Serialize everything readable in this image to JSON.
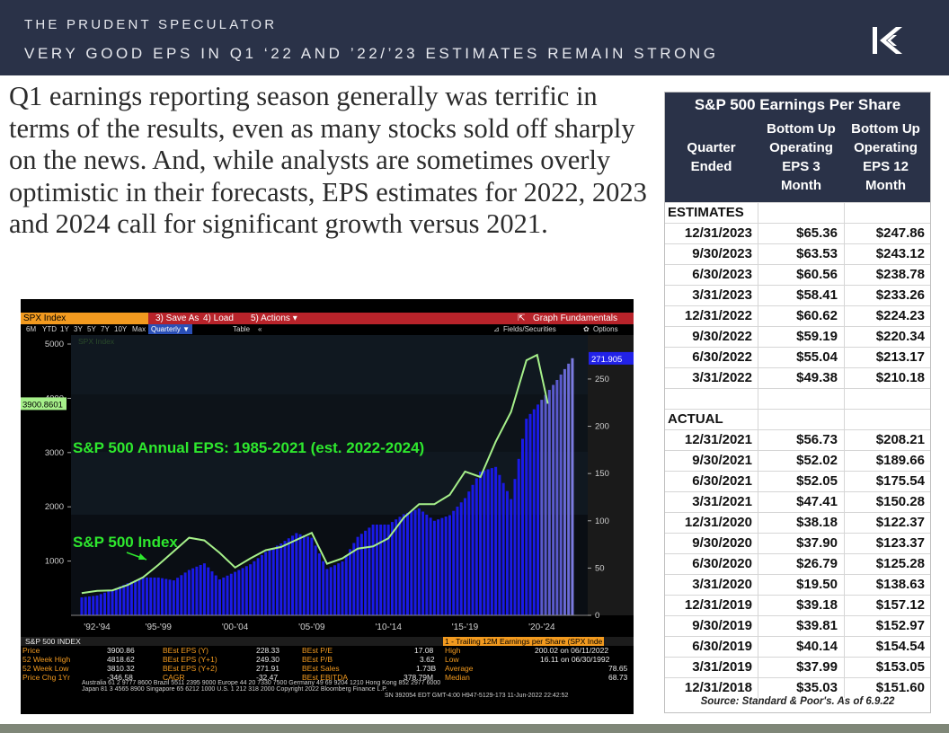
{
  "header": {
    "brand": "THE PRUDENT SPECULATOR",
    "headline": "VERY GOOD EPS IN Q1 ‘22 AND ’22/’23 ESTIMATES REMAIN STRONG",
    "logo_icon": "k-logo-icon"
  },
  "lead_text": "Q1 earnings reporting season generally was terrific in terms of the results, even as many stocks sold off sharply on the news. And, while analysts are sometimes overly optimistic in their forecasts, EPS estimates for 2022, 2023 and 2024 call for significant growth versus 2021.",
  "terminal": {
    "ticker": "SPX Index",
    "menu": [
      "3) Save As",
      "4) Load",
      "5) Actions ▾"
    ],
    "graph_fundamentals": "Graph Fundamentals",
    "periods": [
      "6M",
      "YTD",
      "1Y",
      "3Y",
      "5Y",
      "7Y",
      "10Y",
      "Max"
    ],
    "period_selected": "Quarterly ▼",
    "table_btn": "Table",
    "collapse": "«",
    "fields_btn": "Fields/Securities",
    "options_btn": "Options",
    "footer_title": "S&P 500 INDEX",
    "stats_left": [
      {
        "label": "Price",
        "value": "3900.86"
      },
      {
        "label": "52 Week High",
        "value": "4818.62"
      },
      {
        "label": "52 Week Low",
        "value": "3810.32"
      },
      {
        "label": "Price Chg 1Yr",
        "value": "-346.58"
      }
    ],
    "stats_mid": [
      {
        "label": "BEst EPS (Y)",
        "value": "228.33"
      },
      {
        "label": "BEst EPS (Y+1)",
        "value": "249.30"
      },
      {
        "label": "BEst EPS (Y+2)",
        "value": "271.91"
      },
      {
        "label": "CAGR",
        "value": "-32.47"
      }
    ],
    "stats_mid2": [
      {
        "label": "BEst P/E",
        "value": "17.08"
      },
      {
        "label": "BEst P/B",
        "value": "3.62"
      },
      {
        "label": "BEst Sales",
        "value": "1.73B"
      },
      {
        "label": "BEst EBITDA",
        "value": "378.79M"
      }
    ],
    "stats_right_title": "1 - Trailing 12M Earnings per Share (SPX Inde",
    "stats_right": [
      {
        "label": "High",
        "value": "200.02 on 06/11/2022"
      },
      {
        "label": "Low",
        "value": "16.11 on 06/30/1992"
      },
      {
        "label": "Average",
        "value": "78.65"
      },
      {
        "label": "Median",
        "value": "68.73"
      }
    ],
    "copyright_1": "Australia 61 2 9777 8600 Brazil 5511 2395 9000 Europe 44 20 7330 7500 Germany 49 69 9204 1210 Hong Kong 852 2977 6000",
    "copyright_2": "Japan 81 3 4565 8900        Singapore 65 6212 1000        U.S. 1 212 318 2000        Copyright 2022 Bloomberg Finance L.P.",
    "copyright_3": "SN 392054 EDT  GMT-4:00 H947-5129-173 11-Jun-2022 22:42:52"
  },
  "chart_data": {
    "type": "bar",
    "legend_ghost": "SPX Index",
    "annotation_eps": "S&P 500 Annual EPS: 1985-2021 (est. 2022-2024)",
    "annotation_index": "S&P 500 Index",
    "x_tick_labels": [
      "'92-'94",
      "'95-'99",
      "'00-'04",
      "'05-'09",
      "'10-'14",
      "'15-'19",
      "'20-'24"
    ],
    "left_axis": {
      "ticks": [
        1000,
        2000,
        3000,
        4000,
        5000
      ],
      "ylim": [
        0,
        5000
      ]
    },
    "right_axis": {
      "ticks": [
        0,
        50,
        100,
        150,
        200,
        250
      ],
      "ylim": [
        0,
        287
      ]
    },
    "last_price_label": "3900.8601",
    "last_eps_label": "271.905",
    "series": [
      {
        "name": "SPX Index",
        "kind": "line",
        "color": "#a6f08a",
        "points": [
          [
            1992,
            410
          ],
          [
            1993,
            450
          ],
          [
            1994,
            460
          ],
          [
            1995,
            560
          ],
          [
            1996,
            700
          ],
          [
            1997,
            930
          ],
          [
            1998,
            1180
          ],
          [
            1999,
            1430
          ],
          [
            2000,
            1380
          ],
          [
            2001,
            1150
          ],
          [
            2002,
            880
          ],
          [
            2003,
            1050
          ],
          [
            2004,
            1200
          ],
          [
            2005,
            1260
          ],
          [
            2006,
            1390
          ],
          [
            2007,
            1520
          ],
          [
            2008,
            950
          ],
          [
            2009,
            1050
          ],
          [
            2010,
            1230
          ],
          [
            2011,
            1270
          ],
          [
            2012,
            1420
          ],
          [
            2013,
            1800
          ],
          [
            2014,
            2050
          ],
          [
            2015,
            2050
          ],
          [
            2016,
            2220
          ],
          [
            2017,
            2650
          ],
          [
            2018,
            2550
          ],
          [
            2019,
            3200
          ],
          [
            2020,
            3750
          ],
          [
            2021,
            4700
          ],
          [
            2021.7,
            4800
          ],
          [
            2022.4,
            3900
          ]
        ]
      },
      {
        "name": "Trailing 12M Earnings per Share",
        "kind": "bar",
        "color": "#1a1ae6",
        "points": [
          [
            1992,
            19
          ],
          [
            1993,
            21
          ],
          [
            1994,
            27
          ],
          [
            1995,
            34
          ],
          [
            1996,
            40
          ],
          [
            1997,
            40
          ],
          [
            1998,
            37
          ],
          [
            1999,
            48
          ],
          [
            2000,
            55
          ],
          [
            2001,
            38
          ],
          [
            2002,
            46
          ],
          [
            2003,
            54
          ],
          [
            2004,
            67
          ],
          [
            2005,
            76
          ],
          [
            2006,
            87
          ],
          [
            2007,
            82
          ],
          [
            2008,
            49
          ],
          [
            2009,
            57
          ],
          [
            2010,
            83
          ],
          [
            2011,
            96
          ],
          [
            2012,
            96
          ],
          [
            2013,
            107
          ],
          [
            2014,
            113
          ],
          [
            2015,
            100
          ],
          [
            2016,
            106
          ],
          [
            2017,
            124
          ],
          [
            2018,
            152
          ],
          [
            2019,
            157
          ],
          [
            2020,
            123
          ],
          [
            2021,
            208
          ],
          [
            2022,
            228
          ],
          [
            2023,
            249
          ],
          [
            2024,
            272
          ]
        ]
      }
    ]
  },
  "eps_table": {
    "title": "S&P 500 Earnings Per Share",
    "col_quarter": [
      "Quarter",
      "Ended"
    ],
    "col_3m": [
      "Bottom Up",
      "Operating",
      "EPS 3",
      "Month"
    ],
    "col_12m": [
      "Bottom Up",
      "Operating",
      "EPS 12",
      "Month"
    ],
    "section_estimates": "ESTIMATES",
    "estimates": [
      {
        "q": "12/31/2023",
        "m3": "$65.36",
        "m12": "$247.86"
      },
      {
        "q": "9/30/2023",
        "m3": "$63.53",
        "m12": "$243.12"
      },
      {
        "q": "6/30/2023",
        "m3": "$60.56",
        "m12": "$238.78"
      },
      {
        "q": "3/31/2023",
        "m3": "$58.41",
        "m12": "$233.26"
      },
      {
        "q": "12/31/2022",
        "m3": "$60.62",
        "m12": "$224.23"
      },
      {
        "q": "9/30/2022",
        "m3": "$59.19",
        "m12": "$220.34"
      },
      {
        "q": "6/30/2022",
        "m3": "$55.04",
        "m12": "$213.17"
      },
      {
        "q": "3/31/2022",
        "m3": "$49.38",
        "m12": "$210.18"
      }
    ],
    "section_actual": "ACTUAL",
    "actual": [
      {
        "q": "12/31/2021",
        "m3": "$56.73",
        "m12": "$208.21"
      },
      {
        "q": "9/30/2021",
        "m3": "$52.02",
        "m12": "$189.66"
      },
      {
        "q": "6/30/2021",
        "m3": "$52.05",
        "m12": "$175.54"
      },
      {
        "q": "3/31/2021",
        "m3": "$47.41",
        "m12": "$150.28"
      },
      {
        "q": "12/31/2020",
        "m3": "$38.18",
        "m12": "$122.37"
      },
      {
        "q": "9/30/2020",
        "m3": "$37.90",
        "m12": "$123.37"
      },
      {
        "q": "6/30/2020",
        "m3": "$26.79",
        "m12": "$125.28"
      },
      {
        "q": "3/31/2020",
        "m3": "$19.50",
        "m12": "$138.63"
      },
      {
        "q": "12/31/2019",
        "m3": "$39.18",
        "m12": "$157.12"
      },
      {
        "q": "9/30/2019",
        "m3": "$39.81",
        "m12": "$152.97"
      },
      {
        "q": "6/30/2019",
        "m3": "$40.14",
        "m12": "$154.54"
      },
      {
        "q": "3/31/2019",
        "m3": "$37.99",
        "m12": "$153.05"
      },
      {
        "q": "12/31/2018",
        "m3": "$35.03",
        "m12": "$151.60"
      }
    ],
    "source": "Source: Standard & Poor's. As of 6.9.22"
  }
}
